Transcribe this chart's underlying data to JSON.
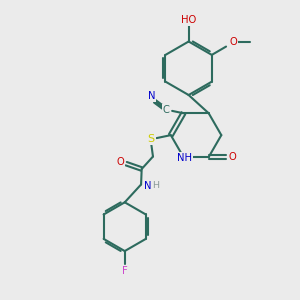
{
  "bg_color": "#ebebeb",
  "bond_color": "#2d6b5e",
  "bond_width": 1.5,
  "atom_colors": {
    "C": "#2d6b5e",
    "N": "#0000cc",
    "O": "#cc0000",
    "S": "#cccc00",
    "F": "#cc44cc",
    "H": "#8a9a99"
  },
  "figsize": [
    3.0,
    3.0
  ],
  "dpi": 100,
  "xlim": [
    0,
    10
  ],
  "ylim": [
    0,
    10
  ]
}
